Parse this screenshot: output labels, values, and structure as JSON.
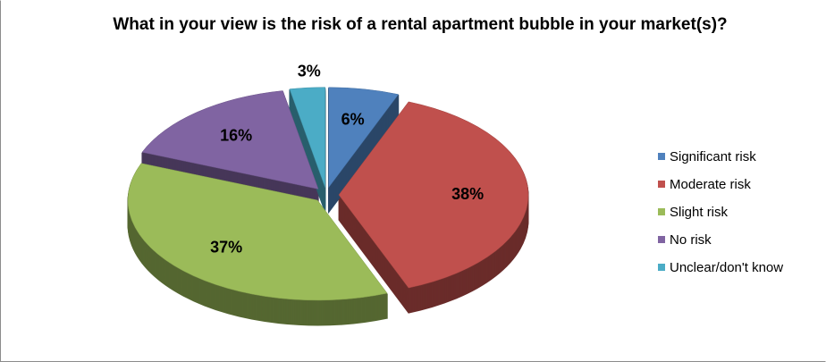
{
  "chart_data": {
    "type": "pie",
    "title": "What in your view is the risk of a rental apartment bubble in your market(s)?",
    "categories": [
      "Significant risk",
      "Moderate risk",
      "Slight risk",
      "No risk",
      "Unclear/don't know"
    ],
    "values": [
      6,
      38,
      37,
      16,
      3
    ],
    "value_labels": [
      "6%",
      "38%",
      "37%",
      "16%",
      "3%"
    ],
    "colors": [
      "#4f81bd",
      "#c0504d",
      "#9bbb59",
      "#8064a2",
      "#4bacc6"
    ],
    "legend": "right",
    "exploded": true,
    "three_d": true
  }
}
